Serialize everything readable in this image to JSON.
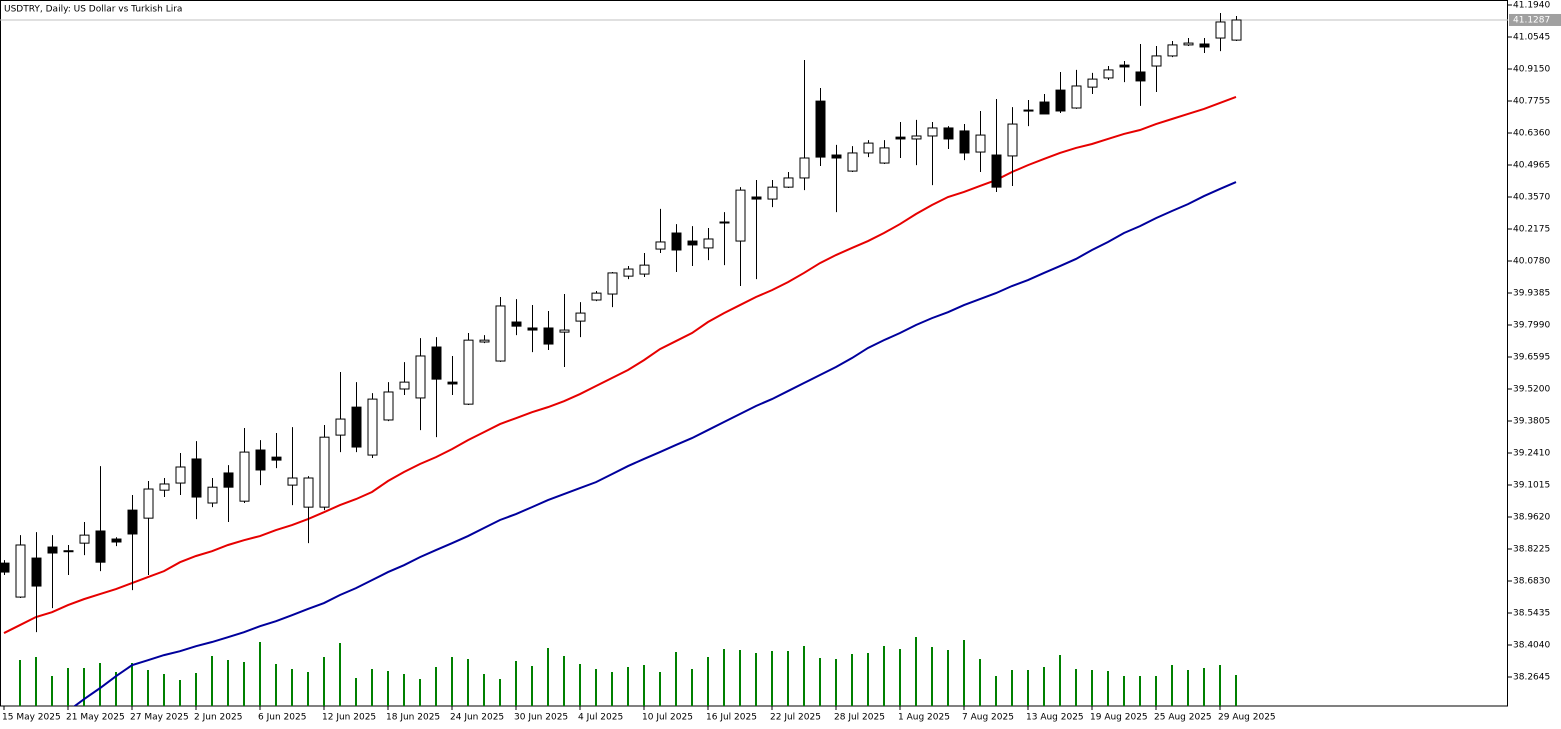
{
  "chart_data": {
    "type": "candlestick",
    "title": "USDTRY, Daily:  US Dollar vs Turkish Lira",
    "categories": [
      "15 May 2025",
      null,
      null,
      null,
      "21 May 2025",
      null,
      null,
      null,
      "27 May 2025",
      null,
      null,
      null,
      "2 Jun 2025",
      null,
      null,
      null,
      "6 Jun 2025",
      null,
      null,
      null,
      "12 Jun 2025",
      null,
      null,
      null,
      "18 Jun 2025",
      null,
      null,
      null,
      "24 Jun 2025",
      null,
      null,
      null,
      "30 Jun 2025",
      null,
      null,
      null,
      "4 Jul 2025",
      null,
      null,
      null,
      "10 Jul 2025",
      null,
      null,
      null,
      "16 Jul 2025",
      null,
      null,
      null,
      "22 Jul 2025",
      null,
      null,
      null,
      "28 Jul 2025",
      null,
      null,
      null,
      "1 Aug 2025",
      null,
      null,
      null,
      "7 Aug 2025",
      null,
      null,
      null,
      "13 Aug 2025",
      null,
      null,
      null,
      "19 Aug 2025",
      null,
      null,
      null,
      "25 Aug 2025",
      null,
      null,
      null,
      "29 Aug 2025",
      null
    ],
    "open": [
      38.761,
      38.613,
      38.783,
      38.831,
      38.813,
      38.848,
      38.901,
      38.866,
      38.992,
      38.957,
      39.079,
      39.11,
      39.215,
      39.023,
      39.154,
      39.031,
      39.254,
      39.223,
      39.101,
      39.005,
      39.005,
      39.319,
      39.441,
      39.232,
      39.385,
      39.52,
      39.481,
      39.703,
      39.55,
      39.454,
      39.725,
      39.642,
      39.812,
      39.786,
      39.786,
      39.768,
      39.816,
      39.908,
      39.934,
      40.012,
      40.021,
      40.13,
      40.2,
      40.165,
      40.135,
      40.248,
      40.165,
      40.357,
      40.348,
      40.4,
      40.44,
      40.775,
      40.54,
      40.47,
      40.549,
      40.505,
      40.618,
      40.61,
      40.623,
      40.658,
      40.645,
      40.553,
      40.54,
      40.536,
      40.732,
      40.771,
      40.823,
      40.745,
      40.836,
      40.876,
      40.932,
      40.902,
      40.928,
      40.972,
      41.02,
      41.024,
      41.05,
      41.041
    ],
    "high": [
      38.774,
      38.883,
      38.896,
      38.883,
      38.84,
      38.94,
      39.184,
      38.874,
      39.058,
      39.119,
      39.132,
      39.241,
      39.293,
      39.132,
      39.188,
      39.35,
      39.297,
      39.328,
      39.354,
      39.14,
      39.363,
      39.594,
      39.55,
      39.502,
      39.55,
      39.637,
      39.742,
      39.746,
      39.664,
      39.764,
      39.755,
      39.921,
      39.912,
      39.886,
      39.86,
      39.934,
      39.899,
      39.947,
      40.03,
      40.056,
      40.113,
      40.305,
      40.239,
      40.23,
      40.222,
      40.291,
      40.4,
      40.431,
      40.431,
      40.466,
      40.954,
      40.832,
      40.584,
      40.579,
      40.605,
      40.605,
      40.684,
      40.693,
      40.684,
      40.666,
      40.675,
      40.732,
      40.784,
      40.749,
      40.78,
      40.806,
      40.902,
      40.911,
      40.898,
      40.928,
      40.95,
      41.024,
      41.015,
      41.037,
      41.05,
      41.05,
      41.159,
      41.146
    ],
    "low": [
      38.709,
      38.609,
      38.46,
      38.565,
      38.709,
      38.796,
      38.726,
      38.835,
      38.643,
      38.709,
      39.049,
      39.058,
      38.953,
      39.005,
      38.94,
      39.023,
      39.101,
      39.175,
      39.014,
      38.848,
      38.992,
      39.245,
      39.245,
      39.219,
      39.38,
      39.494,
      39.341,
      39.31,
      39.494,
      39.45,
      39.72,
      39.638,
      39.755,
      39.681,
      39.69,
      39.616,
      39.746,
      39.903,
      39.877,
      39.999,
      40.008,
      40.113,
      40.03,
      40.056,
      40.082,
      40.06,
      39.969,
      39.999,
      40.313,
      40.396,
      40.387,
      40.492,
      40.291,
      40.466,
      40.531,
      40.501,
      40.527,
      40.496,
      40.409,
      40.566,
      40.518,
      40.466,
      40.379,
      40.405,
      40.666,
      40.719,
      40.723,
      40.741,
      40.806,
      40.867,
      40.858,
      40.754,
      40.815,
      40.967,
      41.015,
      40.985,
      40.993,
      41.037
    ],
    "close": [
      38.722,
      38.84,
      38.661,
      38.805,
      38.815,
      38.883,
      38.765,
      38.853,
      38.888,
      39.084,
      39.106,
      39.18,
      39.049,
      39.092,
      39.092,
      39.245,
      39.167,
      39.21,
      39.132,
      39.132,
      39.31,
      39.389,
      39.267,
      39.476,
      39.507,
      39.55,
      39.664,
      39.563,
      39.542,
      39.733,
      39.733,
      39.882,
      39.794,
      39.777,
      39.716,
      39.777,
      39.851,
      39.938,
      40.026,
      40.043,
      40.06,
      40.161,
      40.126,
      40.148,
      40.174,
      40.244,
      40.387,
      40.348,
      40.4,
      40.44,
      40.527,
      40.531,
      40.527,
      40.549,
      40.592,
      40.571,
      40.61,
      40.623,
      40.658,
      40.61,
      40.549,
      40.627,
      40.4,
      40.675,
      40.736,
      40.719,
      40.732,
      40.841,
      40.871,
      40.911,
      40.924,
      40.863,
      40.972,
      41.02,
      41.028,
      41.011,
      41.12,
      41.1287
    ],
    "overlays": [
      {
        "color": "#e60000",
        "values": [
          38.456,
          38.491,
          38.526,
          38.547,
          38.578,
          38.604,
          38.626,
          38.648,
          38.674,
          38.7,
          38.726,
          38.765,
          38.792,
          38.813,
          38.84,
          38.861,
          38.879,
          38.905,
          38.927,
          38.953,
          38.983,
          39.014,
          39.04,
          39.071,
          39.119,
          39.158,
          39.193,
          39.223,
          39.258,
          39.297,
          39.332,
          39.367,
          39.393,
          39.419,
          39.441,
          39.467,
          39.498,
          39.533,
          39.568,
          39.603,
          39.646,
          39.694,
          39.729,
          39.764,
          39.812,
          39.851,
          39.886,
          39.921,
          39.951,
          39.986,
          40.026,
          40.069,
          40.104,
          40.135,
          40.165,
          40.2,
          40.239,
          40.283,
          40.322,
          40.357,
          40.379,
          40.405,
          40.431,
          40.466,
          40.496,
          40.523,
          40.549,
          40.571,
          40.588,
          40.61,
          40.632,
          40.649,
          40.675,
          40.697,
          40.719,
          40.741,
          40.767,
          40.793
        ]
      },
      {
        "color": "#00009c",
        "values": [
          null,
          null,
          null,
          null,
          38.116,
          38.168,
          38.216,
          38.268,
          38.316,
          38.338,
          38.36,
          38.377,
          38.399,
          38.417,
          38.438,
          38.46,
          38.486,
          38.508,
          38.534,
          38.561,
          38.587,
          38.622,
          38.652,
          38.687,
          38.722,
          38.752,
          38.787,
          38.818,
          38.848,
          38.879,
          38.914,
          38.949,
          38.975,
          39.005,
          39.036,
          39.062,
          39.088,
          39.114,
          39.149,
          39.184,
          39.215,
          39.245,
          39.276,
          39.306,
          39.341,
          39.376,
          39.411,
          39.446,
          39.476,
          39.511,
          39.546,
          39.581,
          39.616,
          39.655,
          39.699,
          39.733,
          39.764,
          39.799,
          39.829,
          39.855,
          39.886,
          39.912,
          39.938,
          39.969,
          39.995,
          40.026,
          40.056,
          40.087,
          40.126,
          40.161,
          40.2,
          40.23,
          40.265,
          40.296,
          40.326,
          40.361,
          40.392,
          40.422
        ]
      }
    ],
    "volume": {
      "color": "#008000",
      "ylim": [
        0,
        70
      ],
      "values": [
        null,
        46,
        49,
        30,
        38,
        38,
        43,
        34,
        43,
        36,
        32,
        26,
        33,
        50,
        46,
        44,
        64,
        42,
        37,
        34,
        49,
        63,
        28,
        37,
        35,
        32,
        27,
        39,
        49,
        47,
        32,
        27,
        45,
        40,
        58,
        50,
        42,
        37,
        34,
        39,
        41,
        34,
        54,
        37,
        49,
        57,
        56,
        53,
        55,
        55,
        60,
        48,
        47,
        52,
        53,
        60,
        57,
        69,
        59,
        56,
        66,
        47,
        30,
        36,
        36,
        39,
        51,
        37,
        36,
        35,
        30,
        30,
        30,
        41,
        36,
        38,
        41,
        31
      ]
    },
    "last_price": {
      "value": 41.1287,
      "label": "41.1287"
    },
    "ylim": [
      38.1381,
      41.2158
    ],
    "yticks": [
      {
        "value": 41.194,
        "label": "41.1940"
      },
      {
        "value": 41.0545,
        "label": "41.0545"
      },
      {
        "value": 40.915,
        "label": "40.9150"
      },
      {
        "value": 40.7755,
        "label": "40.7755"
      },
      {
        "value": 40.636,
        "label": "40.6360"
      },
      {
        "value": 40.4965,
        "label": "40.4965"
      },
      {
        "value": 40.357,
        "label": "40.3570"
      },
      {
        "value": 40.2175,
        "label": "40.2175"
      },
      {
        "value": 40.078,
        "label": "40.0780"
      },
      {
        "value": 39.9385,
        "label": "39.9385"
      },
      {
        "value": 39.799,
        "label": "39.7990"
      },
      {
        "value": 39.6595,
        "label": "39.6595"
      },
      {
        "value": 39.52,
        "label": "39.5200"
      },
      {
        "value": 39.3805,
        "label": "39.3805"
      },
      {
        "value": 39.241,
        "label": "39.2410"
      },
      {
        "value": 39.1015,
        "label": "39.1015"
      },
      {
        "value": 38.962,
        "label": "38.9620"
      },
      {
        "value": 38.8225,
        "label": "38.8225"
      },
      {
        "value": 38.683,
        "label": "38.6830"
      },
      {
        "value": 38.5435,
        "label": "38.5435"
      },
      {
        "value": 38.404,
        "label": "38.4040"
      },
      {
        "value": 38.2645,
        "label": "38.2645"
      }
    ],
    "bull_color": "#ffffff",
    "bear_color": "#000000"
  }
}
